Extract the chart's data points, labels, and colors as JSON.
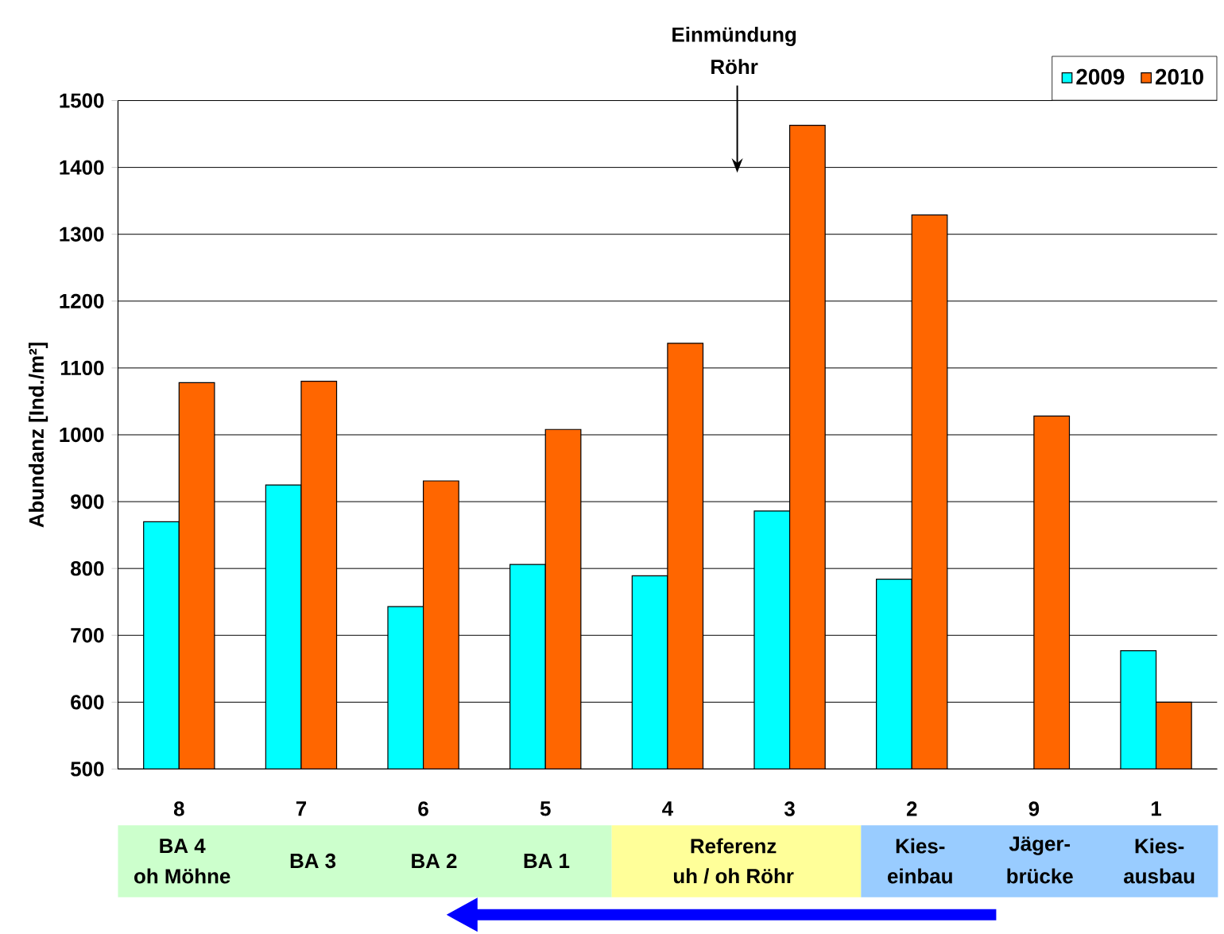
{
  "chart_data": {
    "type": "bar",
    "ylabel": "Abundanz [Ind./m²]",
    "categories": [
      "8",
      "7",
      "6",
      "5",
      "4",
      "3",
      "2",
      "9",
      "1"
    ],
    "series": [
      {
        "name": "2009",
        "color": "#00ffff",
        "values": [
          870,
          925,
          743,
          806,
          789,
          886,
          784,
          null,
          677
        ]
      },
      {
        "name": "2010",
        "color": "#ff6600",
        "values": [
          1078,
          1080,
          931,
          1008,
          1137,
          1463,
          1329,
          1028,
          600
        ]
      }
    ],
    "ylim": [
      500,
      1500
    ],
    "yticks": [
      500,
      600,
      700,
      800,
      900,
      1000,
      1100,
      1200,
      1300,
      1400,
      1500
    ],
    "grid": "y",
    "legend": "top right",
    "annotations": [
      "Einmündung",
      "Röhr",
      "BA 4",
      "oh Möhne",
      "BA 3",
      "BA 2",
      "BA 1",
      "Referenz",
      "uh / oh Röhr",
      "Kies-",
      "einbau",
      "Jäger-",
      "brücke",
      "Kies-",
      "ausbau"
    ]
  }
}
